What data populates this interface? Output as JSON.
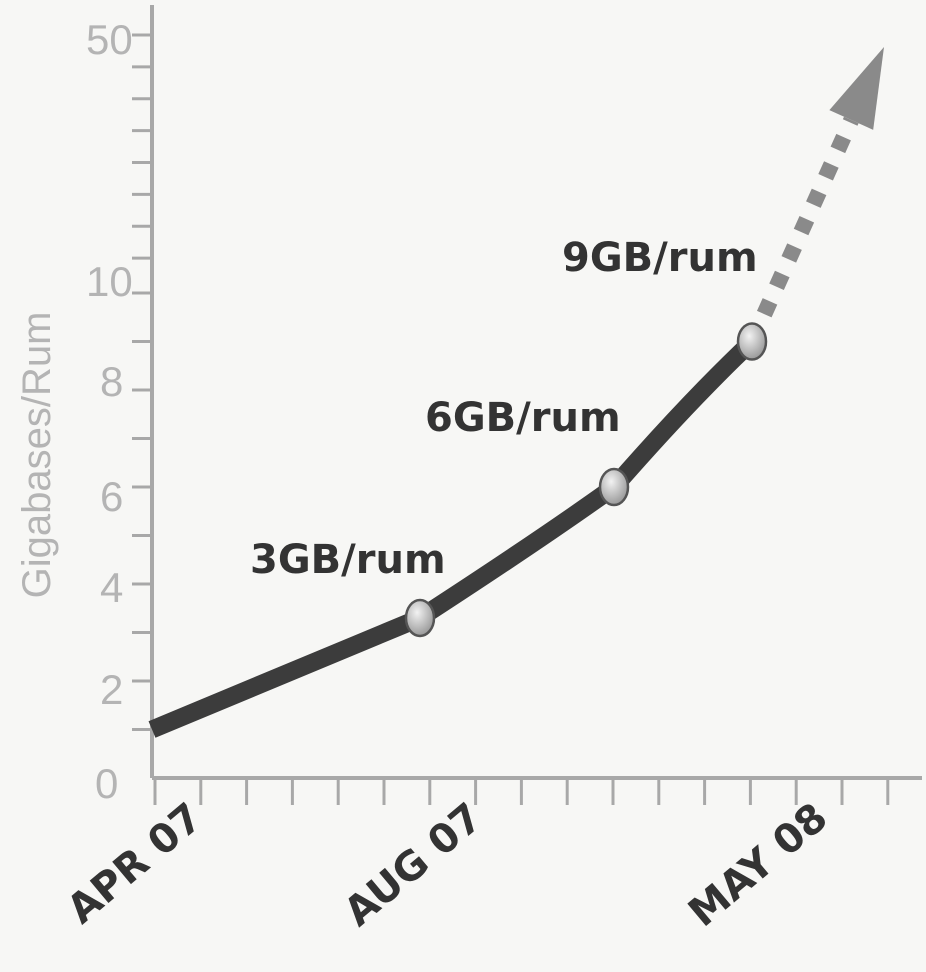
{
  "chart_data": {
    "type": "line",
    "ylabel": "Gigabases/Rum",
    "xlabel": "",
    "y_ticks": [
      "0",
      "2",
      "4",
      "6",
      "8",
      "10",
      "50"
    ],
    "categories": [
      "APR 07",
      "AUG 07",
      "MAY 08"
    ],
    "series": [
      {
        "values": [
          {
            "x": "APR 07",
            "y": 1
          },
          {
            "x": "AUG 07",
            "y": 3.3
          },
          {
            "x": "",
            "y": 6
          },
          {
            "x": "MAY 08",
            "y": 9
          }
        ]
      }
    ],
    "projection": {
      "style": "dashed-arrow",
      "from_y": 9,
      "to_y": 50
    },
    "annotations": [
      "3GB/rum",
      "6GB/rum",
      "9GB/rum"
    ],
    "colors": {
      "axis": "#a8a8a8",
      "line": "#3c3c3c",
      "projection": "#8a8a8a",
      "marker": "#b8b8b8",
      "label_gray": "#b4b4b4",
      "text_dark": "#333333"
    }
  }
}
